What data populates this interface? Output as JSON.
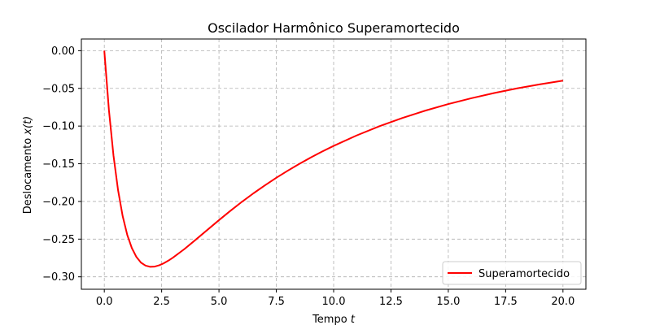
{
  "chart_data": {
    "type": "line",
    "title": "Oscilador Harmônico Superamortecido",
    "xlabel": "Tempo",
    "xlabel_var": "t",
    "ylabel": "Deslocamento",
    "ylabel_var": "x(t)",
    "xlim": [
      -1.0,
      21.0
    ],
    "ylim": [
      -0.3165,
      0.0155
    ],
    "x_ticks": [
      0.0,
      2.5,
      5.0,
      7.5,
      10.0,
      12.5,
      15.0,
      17.5,
      20.0
    ],
    "x_tick_labels": [
      "0.0",
      "2.5",
      "5.0",
      "7.5",
      "10.0",
      "12.5",
      "15.0",
      "17.5",
      "20.0"
    ],
    "y_ticks": [
      0.0,
      -0.05,
      -0.1,
      -0.15,
      -0.2,
      -0.25,
      -0.3
    ],
    "y_tick_labels": [
      "0.00",
      "−0.05",
      "−0.10",
      "−0.15",
      "−0.20",
      "−0.25",
      "−0.30"
    ],
    "grid": true,
    "legend_position": "lower-right",
    "series": [
      {
        "name": "Superamortecido",
        "color": "#ff0000",
        "x": [
          0,
          0.2,
          0.4,
          0.6,
          0.8,
          1.0,
          1.2,
          1.4,
          1.6,
          1.8,
          2.0,
          2.2,
          2.4,
          2.6,
          2.8,
          3.0,
          3.5,
          4.0,
          4.5,
          5.0,
          5.5,
          6.0,
          6.5,
          7.0,
          7.5,
          8.0,
          8.5,
          9.0,
          9.5,
          10.0,
          11.0,
          12.0,
          13.0,
          14.0,
          15.0,
          16.0,
          17.0,
          18.0,
          19.0,
          20.0
        ],
        "y": [
          0.0,
          -0.0784,
          -0.139,
          -0.1851,
          -0.2194,
          -0.2443,
          -0.2618,
          -0.2737,
          -0.2812,
          -0.2852,
          -0.2867,
          -0.2864,
          -0.2846,
          -0.2819,
          -0.2784,
          -0.2744,
          -0.263,
          -0.2504,
          -0.2376,
          -0.2248,
          -0.2124,
          -0.2005,
          -0.1893,
          -0.1787,
          -0.1686,
          -0.1592,
          -0.1502,
          -0.1418,
          -0.1338,
          -0.1263,
          -0.1125,
          -0.1002,
          -0.0893,
          -0.0795,
          -0.0708,
          -0.0631,
          -0.0562,
          -0.05,
          -0.0446,
          -0.0397
        ]
      }
    ]
  }
}
